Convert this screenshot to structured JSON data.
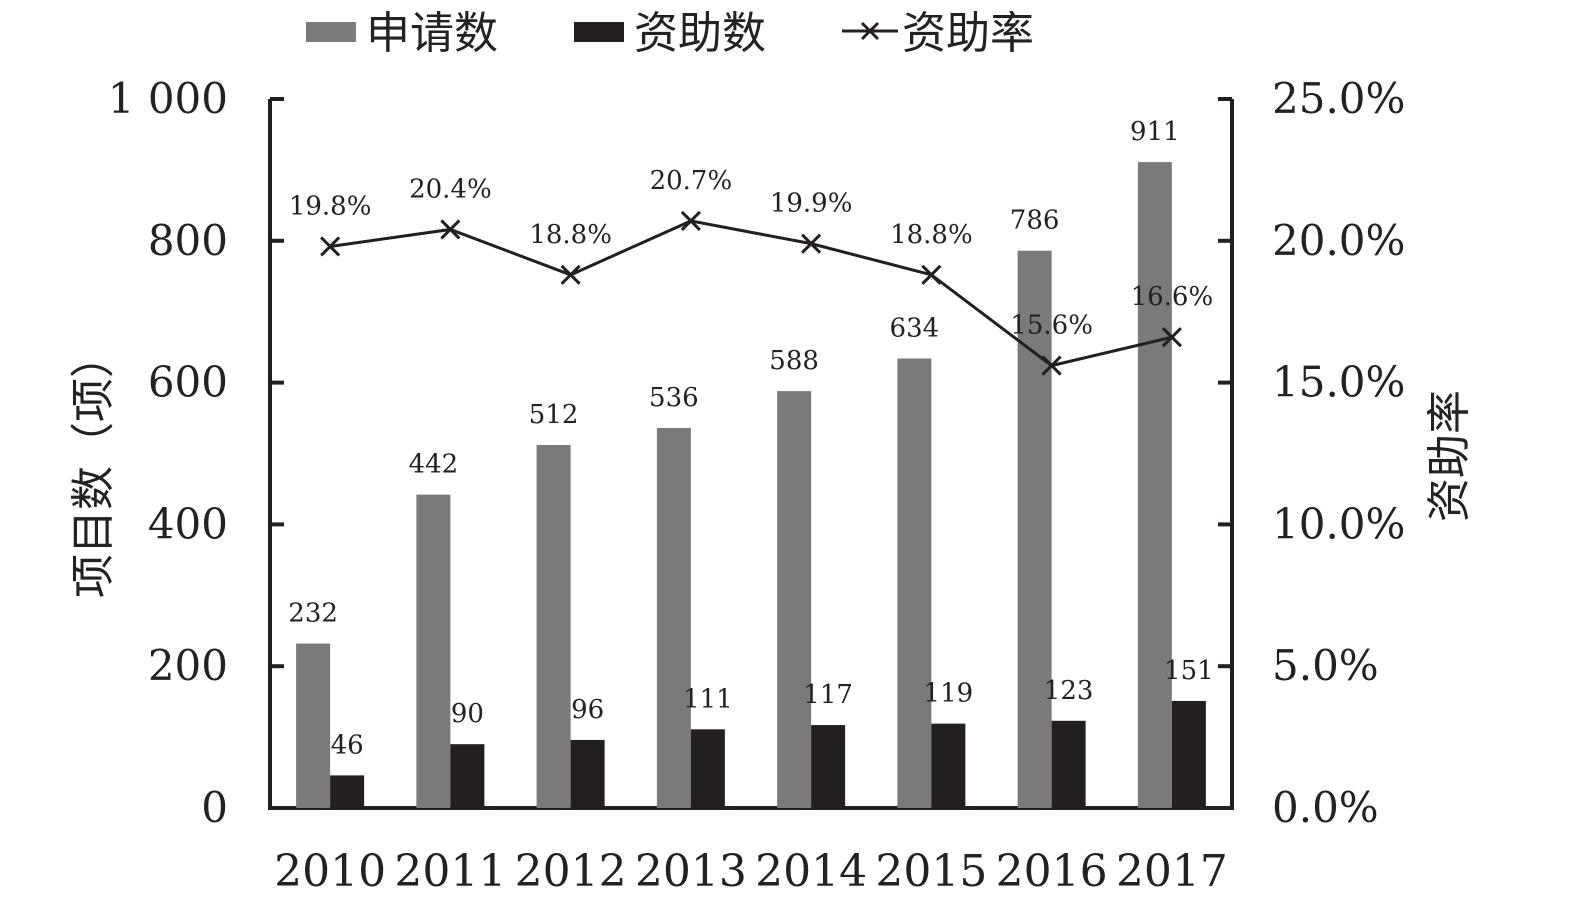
{
  "chart_data": {
    "type": "bar",
    "categories": [
      "2010",
      "2011",
      "2012",
      "2013",
      "2014",
      "2015",
      "2016",
      "2017"
    ],
    "series": [
      {
        "name": "申请数",
        "kind": "bar",
        "axis": "left",
        "color": "#7a7a7a",
        "values": [
          232,
          442,
          512,
          536,
          588,
          634,
          786,
          911
        ],
        "labels": [
          "232",
          "442",
          "512",
          "536",
          "588",
          "634",
          "786",
          "911"
        ]
      },
      {
        "name": "资助数",
        "kind": "bar",
        "axis": "left",
        "color": "#231f20",
        "values": [
          46,
          90,
          96,
          111,
          117,
          119,
          123,
          151
        ],
        "labels": [
          "46",
          "90",
          "96",
          "111",
          "117",
          "119",
          "123",
          "151"
        ]
      },
      {
        "name": "资助率",
        "kind": "line",
        "axis": "right",
        "color": "#231f20",
        "marker": "x",
        "values": [
          19.8,
          20.4,
          18.8,
          20.7,
          19.9,
          18.8,
          15.6,
          16.6
        ],
        "labels": [
          "19.8%",
          "20.4%",
          "18.8%",
          "20.7%",
          "19.9%",
          "18.8%",
          "15.6%",
          "16.6%"
        ]
      }
    ],
    "ylabel": "项目数（项）",
    "y2label": "资助率",
    "ylim": [
      0,
      1000
    ],
    "y2lim": [
      0,
      25
    ],
    "yticks": [
      "0",
      "200",
      "400",
      "600",
      "800",
      "1 000"
    ],
    "y2ticks": [
      "0.0%",
      "5.0%",
      "10.0%",
      "15.0%",
      "20.0%",
      "25.0%"
    ],
    "grid": false,
    "legend": "top"
  }
}
